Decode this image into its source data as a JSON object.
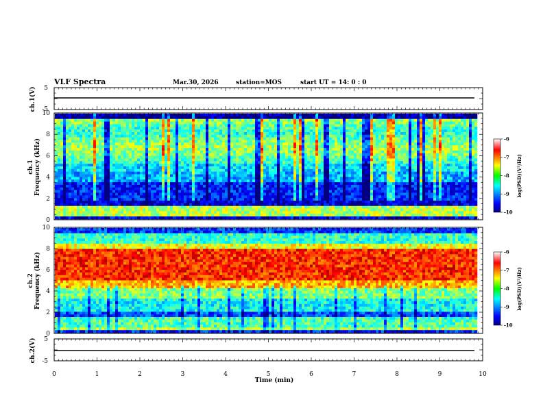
{
  "header": {
    "title": "VLF Spectra",
    "date": "Mar.30, 2026",
    "station": "station=MOS",
    "start_time": "start  UT =   14: 0  : 0"
  },
  "chart_data": {
    "type": "heatmap",
    "title": "VLF Spectra",
    "xlabel": "Time  (min)",
    "xlim": [
      0,
      10
    ],
    "x_ticks": [
      "0",
      "1",
      "2",
      "3",
      "4",
      "5",
      "6",
      "7",
      "8",
      "9",
      "10"
    ],
    "panels": [
      {
        "name": "ch1-waveform",
        "ylabel": "ch.1(V)",
        "ylim": [
          -5,
          5
        ],
        "y_ticks": [
          "5",
          "-5"
        ],
        "trace_level": 0
      },
      {
        "name": "ch1-spectrogram",
        "ylabel": "ch.1\nFrequency  (kHz)",
        "ylim": [
          0,
          10
        ],
        "y_ticks": [
          "0",
          "2",
          "4",
          "6",
          "8",
          "10"
        ],
        "data_end_min": 9.85,
        "colorbar": {
          "label": "log(PSD)(V²/Hz)",
          "range": [
            -10,
            -6
          ],
          "ticks": [
            "-10",
            "-9",
            "-8",
            "-7",
            "-6"
          ]
        }
      },
      {
        "name": "ch2-spectrogram",
        "ylabel": "ch.2\nFrequency  (kHz)",
        "ylim": [
          0,
          10
        ],
        "y_ticks": [
          "0",
          "2",
          "4",
          "6",
          "8",
          "10"
        ],
        "data_end_min": 9.85,
        "colorbar": {
          "label": "log(PSD)(V²/Hz)",
          "range": [
            -10,
            -6
          ],
          "ticks": [
            "-10",
            "-9",
            "-8",
            "-7",
            "-6"
          ]
        }
      },
      {
        "name": "ch2-waveform",
        "ylabel": "ch.2(V)",
        "ylim": [
          -5,
          5
        ],
        "y_ticks": [
          "5",
          "-5"
        ],
        "trace_level": 0
      }
    ]
  }
}
